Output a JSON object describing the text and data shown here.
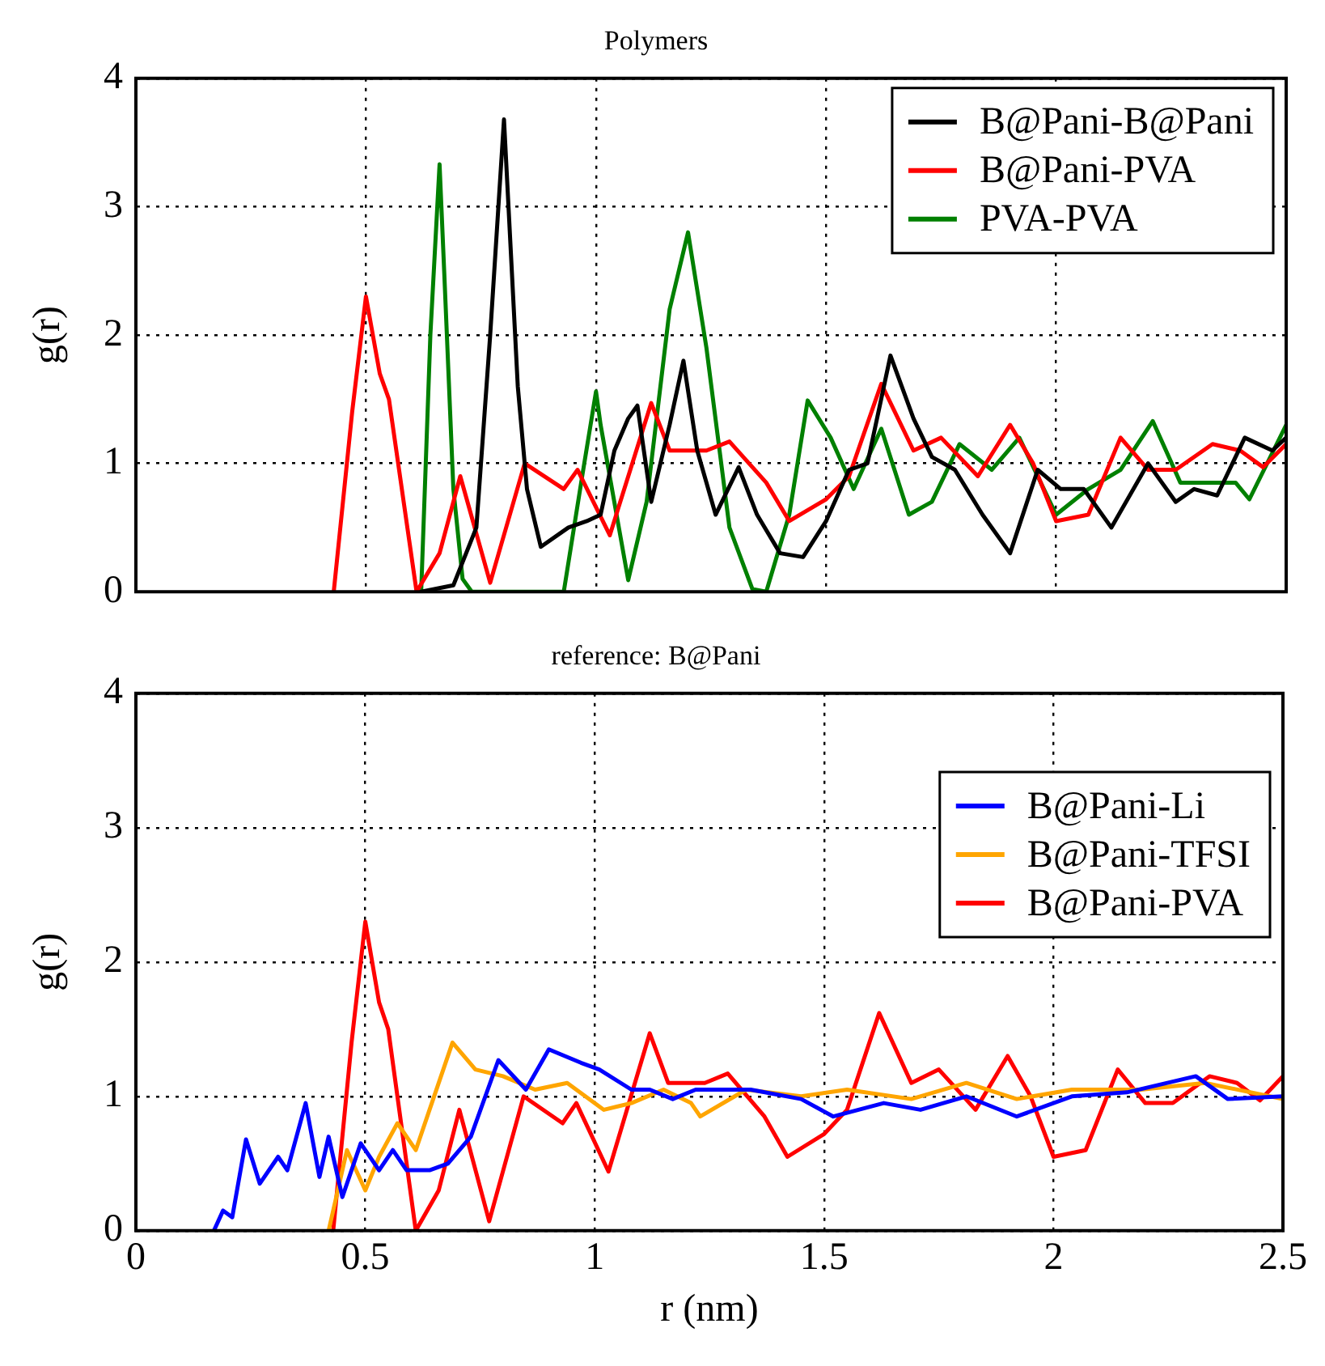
{
  "chart_data": [
    {
      "type": "line",
      "title": "Polymers",
      "ylabel": "g(r)",
      "xlim": [
        0,
        2.5
      ],
      "ylim": [
        0,
        4
      ],
      "xticks": [
        0,
        0.5,
        1,
        1.5,
        2,
        2.5
      ],
      "yticks": [
        0,
        1,
        2,
        3,
        4
      ],
      "grid": true,
      "legend": "top right",
      "tick_labels": "y",
      "series": [
        {
          "name": "B@Pani-B@Pani",
          "color": "#000000",
          "x": [
            0.62,
            0.69,
            0.74,
            0.77,
            0.8,
            0.83,
            0.85,
            0.88,
            0.94,
            0.98,
            1.01,
            1.04,
            1.07,
            1.09,
            1.12,
            1.16,
            1.19,
            1.22,
            1.26,
            1.31,
            1.35,
            1.4,
            1.45,
            1.5,
            1.55,
            1.59,
            1.64,
            1.69,
            1.73,
            1.78,
            1.84,
            1.9,
            1.96,
            2.01,
            2.06,
            2.12,
            2.2,
            2.26,
            2.3,
            2.35,
            2.41,
            2.47,
            2.5
          ],
          "values": [
            0,
            0.05,
            0.5,
            2.0,
            3.68,
            1.6,
            0.8,
            0.35,
            0.5,
            0.55,
            0.6,
            1.1,
            1.35,
            1.45,
            0.7,
            1.3,
            1.8,
            1.1,
            0.6,
            0.97,
            0.6,
            0.3,
            0.27,
            0.55,
            0.95,
            1.0,
            1.84,
            1.35,
            1.05,
            0.95,
            0.6,
            0.3,
            0.95,
            0.8,
            0.8,
            0.5,
            1.0,
            0.7,
            0.8,
            0.75,
            1.2,
            1.1,
            1.2
          ]
        },
        {
          "name": "B@Pani-PVA",
          "color": "#ff0000",
          "x": [
            0.43,
            0.47,
            0.5,
            0.53,
            0.55,
            0.61,
            0.66,
            0.705,
            0.77,
            0.845,
            0.93,
            0.96,
            1.03,
            1.12,
            1.16,
            1.24,
            1.29,
            1.37,
            1.42,
            1.5,
            1.55,
            1.62,
            1.69,
            1.75,
            1.83,
            1.9,
            1.95,
            2.0,
            2.07,
            2.14,
            2.2,
            2.26,
            2.34,
            2.4,
            2.45,
            2.5
          ],
          "values": [
            0,
            1.4,
            2.3,
            1.7,
            1.5,
            0,
            0.3,
            0.9,
            0.07,
            1.0,
            0.8,
            0.95,
            0.44,
            1.47,
            1.1,
            1.1,
            1.17,
            0.85,
            0.55,
            0.72,
            0.9,
            1.62,
            1.1,
            1.2,
            0.9,
            1.3,
            1.0,
            0.55,
            0.6,
            1.2,
            0.95,
            0.95,
            1.15,
            1.1,
            0.97,
            1.15
          ]
        },
        {
          "name": "PVA-PVA",
          "color": "#008000",
          "x": [
            0.62,
            0.64,
            0.66,
            0.67,
            0.69,
            0.71,
            0.73,
            0.93,
            0.97,
            1.0,
            1.01,
            1.07,
            1.11,
            1.16,
            1.2,
            1.24,
            1.29,
            1.34,
            1.37,
            1.42,
            1.46,
            1.51,
            1.56,
            1.62,
            1.68,
            1.73,
            1.79,
            1.86,
            1.92,
            2.0,
            2.07,
            2.14,
            2.21,
            2.27,
            2.33,
            2.39,
            2.42,
            2.5
          ],
          "values": [
            0,
            2.0,
            3.33,
            2.5,
            0.8,
            0.1,
            0,
            0,
            0.9,
            1.56,
            1.3,
            0.09,
            0.7,
            2.2,
            2.8,
            1.9,
            0.5,
            0.02,
            0,
            0.6,
            1.49,
            1.2,
            0.8,
            1.27,
            0.6,
            0.7,
            1.15,
            0.95,
            1.2,
            0.6,
            0.8,
            0.95,
            1.33,
            0.85,
            0.85,
            0.85,
            0.72,
            1.3
          ]
        }
      ]
    },
    {
      "type": "line",
      "title": "reference: B@Pani",
      "xlabel": "r (nm)",
      "ylabel": "g(r)",
      "xlim": [
        0,
        2.5
      ],
      "ylim": [
        0,
        4
      ],
      "xticks": [
        0,
        0.5,
        1,
        1.5,
        2,
        2.5
      ],
      "yticks": [
        0,
        1,
        2,
        3,
        4
      ],
      "grid": true,
      "legend": "right",
      "series": [
        {
          "name": "B@Pani-Li",
          "color": "#0000ff",
          "x": [
            0.17,
            0.19,
            0.21,
            0.24,
            0.27,
            0.31,
            0.33,
            0.37,
            0.4,
            0.42,
            0.45,
            0.49,
            0.53,
            0.56,
            0.59,
            0.64,
            0.68,
            0.73,
            0.79,
            0.85,
            0.9,
            0.97,
            1.01,
            1.08,
            1.12,
            1.17,
            1.22,
            1.34,
            1.45,
            1.52,
            1.63,
            1.71,
            1.81,
            1.92,
            2.04,
            2.16,
            2.31,
            2.38,
            2.5
          ],
          "values": [
            0,
            0.15,
            0.1,
            0.68,
            0.35,
            0.55,
            0.45,
            0.95,
            0.4,
            0.7,
            0.25,
            0.65,
            0.45,
            0.6,
            0.45,
            0.45,
            0.5,
            0.7,
            1.27,
            1.05,
            1.35,
            1.25,
            1.2,
            1.05,
            1.05,
            0.98,
            1.05,
            1.05,
            0.98,
            0.85,
            0.95,
            0.9,
            1.0,
            0.85,
            1.0,
            1.03,
            1.15,
            0.98,
            1.0
          ]
        },
        {
          "name": "B@Pani-TFSI",
          "color": "#ffa500",
          "x": [
            0.42,
            0.46,
            0.5,
            0.53,
            0.57,
            0.61,
            0.64,
            0.69,
            0.74,
            0.8,
            0.87,
            0.94,
            1.02,
            1.08,
            1.15,
            1.21,
            1.23,
            1.33,
            1.45,
            1.55,
            1.69,
            1.81,
            1.92,
            2.04,
            2.19,
            2.33,
            2.5
          ],
          "values": [
            0,
            0.6,
            0.3,
            0.55,
            0.8,
            0.6,
            0.9,
            1.4,
            1.2,
            1.15,
            1.05,
            1.1,
            0.9,
            0.95,
            1.05,
            0.95,
            0.85,
            1.05,
            1.0,
            1.05,
            0.98,
            1.1,
            0.98,
            1.05,
            1.05,
            1.1,
            0.98
          ]
        },
        {
          "name": "B@Pani-PVA",
          "color": "#ff0000",
          "x": [
            0.43,
            0.47,
            0.5,
            0.53,
            0.55,
            0.61,
            0.66,
            0.705,
            0.77,
            0.845,
            0.93,
            0.96,
            1.03,
            1.12,
            1.16,
            1.24,
            1.29,
            1.37,
            1.42,
            1.5,
            1.55,
            1.62,
            1.69,
            1.75,
            1.83,
            1.9,
            1.95,
            2.0,
            2.07,
            2.14,
            2.2,
            2.26,
            2.34,
            2.4,
            2.45,
            2.5
          ],
          "values": [
            0,
            1.4,
            2.3,
            1.7,
            1.5,
            0,
            0.3,
            0.9,
            0.07,
            1.0,
            0.8,
            0.95,
            0.44,
            1.47,
            1.1,
            1.1,
            1.17,
            0.85,
            0.55,
            0.72,
            0.9,
            1.62,
            1.1,
            1.2,
            0.9,
            1.3,
            1.0,
            0.55,
            0.6,
            1.2,
            0.95,
            0.95,
            1.15,
            1.1,
            0.97,
            1.15
          ]
        }
      ]
    }
  ]
}
